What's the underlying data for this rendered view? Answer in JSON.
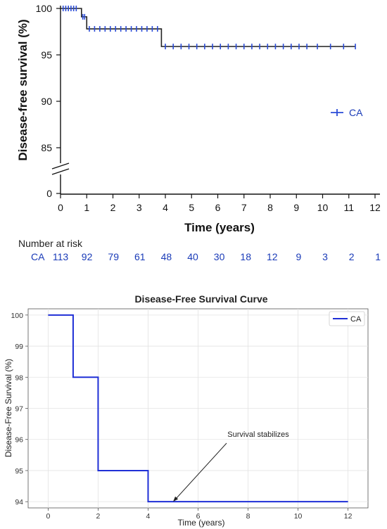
{
  "chart_data": [
    {
      "type": "line",
      "step": true,
      "ylabel": "Disease-free survival (%)",
      "xlabel": "Time (years)",
      "xlim": [
        0,
        12
      ],
      "x_ticks": [
        "0",
        "1",
        "2",
        "3",
        "4",
        "5",
        "6",
        "7",
        "8",
        "9",
        "10",
        "11",
        "12"
      ],
      "y_ticks": [
        "0",
        "85",
        "90",
        "95",
        "100"
      ],
      "axis_break": true,
      "grid": false,
      "legend_position": "right-middle",
      "series": [
        {
          "name": "CA",
          "color": "#2a4bd7",
          "steps": [
            {
              "x": 0,
              "y": 100
            },
            {
              "x": 0.8,
              "y": 99.1
            },
            {
              "x": 1.0,
              "y": 97.8
            },
            {
              "x": 3.85,
              "y": 95.9
            },
            {
              "x": 11.25,
              "y": 95.9
            }
          ],
          "censor_marks": [
            {
              "x": 0.1,
              "y": 100
            },
            {
              "x": 0.2,
              "y": 100
            },
            {
              "x": 0.3,
              "y": 100
            },
            {
              "x": 0.4,
              "y": 100
            },
            {
              "x": 0.5,
              "y": 100
            },
            {
              "x": 0.6,
              "y": 100
            },
            {
              "x": 0.85,
              "y": 99.1
            },
            {
              "x": 0.92,
              "y": 99.1
            },
            {
              "x": 1.1,
              "y": 97.8
            },
            {
              "x": 1.3,
              "y": 97.8
            },
            {
              "x": 1.5,
              "y": 97.8
            },
            {
              "x": 1.7,
              "y": 97.8
            },
            {
              "x": 1.9,
              "y": 97.8
            },
            {
              "x": 2.1,
              "y": 97.8
            },
            {
              "x": 2.3,
              "y": 97.8
            },
            {
              "x": 2.5,
              "y": 97.8
            },
            {
              "x": 2.7,
              "y": 97.8
            },
            {
              "x": 2.9,
              "y": 97.8
            },
            {
              "x": 3.1,
              "y": 97.8
            },
            {
              "x": 3.3,
              "y": 97.8
            },
            {
              "x": 3.5,
              "y": 97.8
            },
            {
              "x": 3.7,
              "y": 97.8
            },
            {
              "x": 4.0,
              "y": 95.9
            },
            {
              "x": 4.3,
              "y": 95.9
            },
            {
              "x": 4.6,
              "y": 95.9
            },
            {
              "x": 4.9,
              "y": 95.9
            },
            {
              "x": 5.2,
              "y": 95.9
            },
            {
              "x": 5.5,
              "y": 95.9
            },
            {
              "x": 5.8,
              "y": 95.9
            },
            {
              "x": 6.1,
              "y": 95.9
            },
            {
              "x": 6.4,
              "y": 95.9
            },
            {
              "x": 6.7,
              "y": 95.9
            },
            {
              "x": 7.0,
              "y": 95.9
            },
            {
              "x": 7.3,
              "y": 95.9
            },
            {
              "x": 7.6,
              "y": 95.9
            },
            {
              "x": 7.9,
              "y": 95.9
            },
            {
              "x": 8.2,
              "y": 95.9
            },
            {
              "x": 8.5,
              "y": 95.9
            },
            {
              "x": 8.8,
              "y": 95.9
            },
            {
              "x": 9.1,
              "y": 95.9
            },
            {
              "x": 9.4,
              "y": 95.9
            },
            {
              "x": 9.8,
              "y": 95.9
            },
            {
              "x": 10.3,
              "y": 95.9
            },
            {
              "x": 10.8,
              "y": 95.9
            },
            {
              "x": 11.25,
              "y": 95.9
            }
          ]
        }
      ],
      "risk_table": {
        "title": "Number at risk",
        "rows": [
          {
            "label": "CA",
            "values": [
              "113",
              "92",
              "79",
              "61",
              "48",
              "40",
              "30",
              "18",
              "12",
              "9",
              "3",
              "2",
              "1"
            ]
          }
        ]
      }
    },
    {
      "type": "line",
      "step": true,
      "title": "Disease-Free Survival Curve",
      "xlabel": "Time (years)",
      "ylabel": "Disease-Free Survival (%)",
      "xlim": [
        -0.8,
        12.8
      ],
      "ylim": [
        93.8,
        100.2
      ],
      "x_ticks": [
        "0",
        "2",
        "4",
        "6",
        "8",
        "10",
        "12"
      ],
      "y_ticks": [
        "94",
        "95",
        "96",
        "97",
        "98",
        "99",
        "100"
      ],
      "grid": true,
      "legend_position": "top-right",
      "series": [
        {
          "name": "CA",
          "color": "#1f2fd6",
          "steps": [
            {
              "x": 0,
              "y": 100
            },
            {
              "x": 1,
              "y": 98
            },
            {
              "x": 2,
              "y": 95
            },
            {
              "x": 4,
              "y": 94
            },
            {
              "x": 12,
              "y": 94
            }
          ]
        }
      ],
      "annotation": {
        "text": "Survival stabilizes",
        "x": 5,
        "y": 94
      }
    }
  ]
}
